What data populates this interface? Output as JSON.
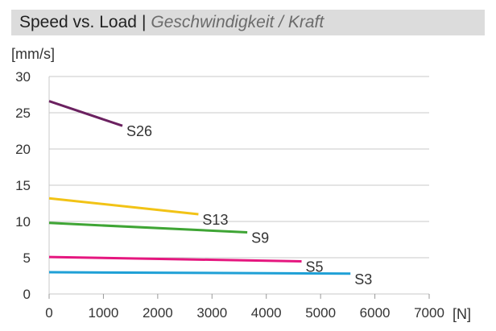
{
  "header": {
    "title": "Speed vs. Load",
    "separator": "|",
    "subtitle": "Geschwindigkeit / Kraft"
  },
  "chart_data": {
    "type": "line",
    "ylabel": "[mm/s]",
    "xlabel": "[N]",
    "xlim": [
      0,
      7000
    ],
    "ylim": [
      0,
      30
    ],
    "x_ticks": [
      0,
      1000,
      2000,
      3000,
      4000,
      5000,
      6000,
      7000
    ],
    "y_ticks": [
      0,
      5,
      10,
      15,
      20,
      25,
      30
    ],
    "grid": "horizontal",
    "legend": "none",
    "series": [
      {
        "name": "S26",
        "color": "#6b2160",
        "x": [
          0,
          1350
        ],
        "y": [
          26.6,
          23.2
        ]
      },
      {
        "name": "S13",
        "color": "#f2c316",
        "x": [
          0,
          2750
        ],
        "y": [
          13.2,
          11.0
        ]
      },
      {
        "name": "S9",
        "color": "#3fa535",
        "x": [
          0,
          3650
        ],
        "y": [
          9.8,
          8.5
        ]
      },
      {
        "name": "S5",
        "color": "#e5177f",
        "x": [
          0,
          4650
        ],
        "y": [
          5.1,
          4.5
        ]
      },
      {
        "name": "S3",
        "color": "#1fa0d6",
        "x": [
          0,
          5550
        ],
        "y": [
          3.0,
          2.8
        ]
      }
    ]
  }
}
